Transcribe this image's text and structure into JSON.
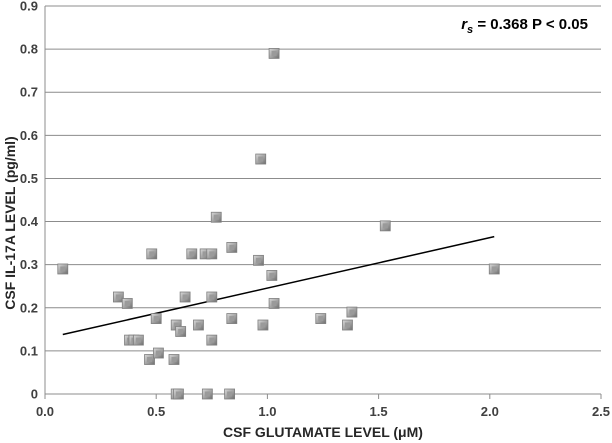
{
  "chart_data": {
    "type": "scatter",
    "title": "",
    "xlabel": "CSF GLUTAMATE LEVEL (μM)",
    "ylabel": "CSF IL-17A LEVEL (pg/ml)",
    "xlim": [
      0,
      2.5
    ],
    "ylim": [
      0,
      0.9
    ],
    "x_ticks": [
      "0.0",
      "0.5",
      "1.0",
      "1.5",
      "2.0",
      "2.5"
    ],
    "y_ticks": [
      "0",
      "0.1",
      "0.2",
      "0.3",
      "0.4",
      "0.5",
      "0.6",
      "0.7",
      "0.8",
      "0.9"
    ],
    "grid": "horizontal",
    "annotation": {
      "rs_symbol": "r",
      "rs_subscript": "s",
      "text": " = 0.368 P < 0.05"
    },
    "trendline": {
      "x": [
        0.08,
        2.02
      ],
      "y": [
        0.138,
        0.365
      ]
    },
    "points": [
      {
        "x": 0.08,
        "y": 0.29
      },
      {
        "x": 0.33,
        "y": 0.225
      },
      {
        "x": 0.37,
        "y": 0.21
      },
      {
        "x": 0.38,
        "y": 0.125
      },
      {
        "x": 0.4,
        "y": 0.125
      },
      {
        "x": 0.42,
        "y": 0.125
      },
      {
        "x": 0.47,
        "y": 0.08
      },
      {
        "x": 0.48,
        "y": 0.325
      },
      {
        "x": 0.5,
        "y": 0.175
      },
      {
        "x": 0.51,
        "y": 0.095
      },
      {
        "x": 0.58,
        "y": 0.08
      },
      {
        "x": 0.59,
        "y": 0.0
      },
      {
        "x": 0.59,
        "y": 0.16
      },
      {
        "x": 0.6,
        "y": 0.0
      },
      {
        "x": 0.61,
        "y": 0.145
      },
      {
        "x": 0.63,
        "y": 0.225
      },
      {
        "x": 0.66,
        "y": 0.325
      },
      {
        "x": 0.69,
        "y": 0.16
      },
      {
        "x": 0.72,
        "y": 0.325
      },
      {
        "x": 0.73,
        "y": 0.0
      },
      {
        "x": 0.75,
        "y": 0.325
      },
      {
        "x": 0.75,
        "y": 0.225
      },
      {
        "x": 0.75,
        "y": 0.125
      },
      {
        "x": 0.77,
        "y": 0.41
      },
      {
        "x": 0.83,
        "y": 0.0
      },
      {
        "x": 0.84,
        "y": 0.34
      },
      {
        "x": 0.84,
        "y": 0.175
      },
      {
        "x": 0.96,
        "y": 0.31
      },
      {
        "x": 0.97,
        "y": 0.545
      },
      {
        "x": 0.98,
        "y": 0.16
      },
      {
        "x": 1.02,
        "y": 0.275
      },
      {
        "x": 1.03,
        "y": 0.21
      },
      {
        "x": 1.03,
        "y": 0.79
      },
      {
        "x": 1.24,
        "y": 0.175
      },
      {
        "x": 1.36,
        "y": 0.16
      },
      {
        "x": 1.38,
        "y": 0.19
      },
      {
        "x": 1.53,
        "y": 0.39
      },
      {
        "x": 2.02,
        "y": 0.29
      }
    ]
  }
}
